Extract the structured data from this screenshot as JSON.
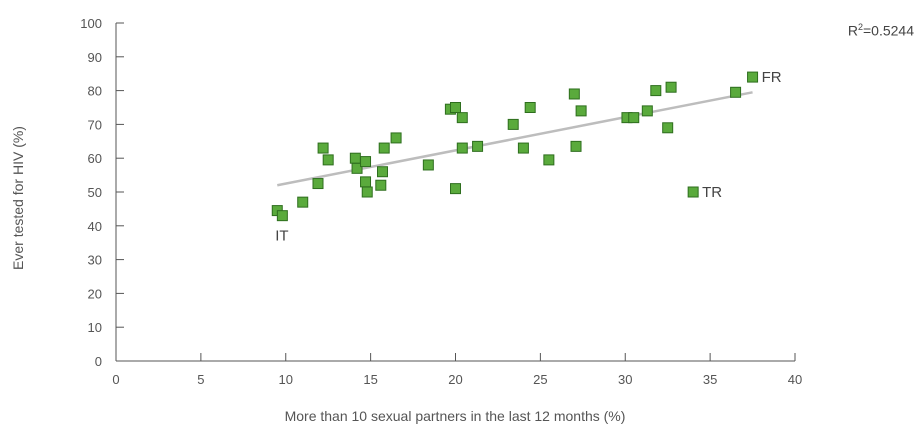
{
  "chart_data": {
    "type": "scatter",
    "xlabel": "More than 10 sexual partners in the last 12 months (%)",
    "ylabel": "Ever tested for HIV (%)",
    "xlim": [
      0,
      40
    ],
    "ylim": [
      0,
      100
    ],
    "xticks": [
      0,
      5,
      10,
      15,
      20,
      25,
      30,
      35,
      40
    ],
    "yticks": [
      0,
      10,
      20,
      30,
      40,
      50,
      60,
      70,
      80,
      90,
      100
    ],
    "grid": false,
    "legend": "none",
    "marker_color": "#5aaa3c",
    "marker_edge_color": "#2e6e1e",
    "trendline_color": "#bdbdbd",
    "r2": {
      "prefix": "R",
      "sup": "2",
      "value": "=0.5244"
    },
    "trendline": {
      "x": [
        9.5,
        37.5
      ],
      "y": [
        52,
        79.5
      ]
    },
    "points": [
      {
        "x": 9.5,
        "y": 44.5,
        "label": "IT"
      },
      {
        "x": 9.8,
        "y": 43,
        "label": ""
      },
      {
        "x": 11.0,
        "y": 47,
        "label": ""
      },
      {
        "x": 11.9,
        "y": 52.5,
        "label": ""
      },
      {
        "x": 12.2,
        "y": 63,
        "label": ""
      },
      {
        "x": 12.5,
        "y": 59.5,
        "label": ""
      },
      {
        "x": 14.1,
        "y": 60,
        "label": ""
      },
      {
        "x": 14.2,
        "y": 57,
        "label": ""
      },
      {
        "x": 14.7,
        "y": 59,
        "label": ""
      },
      {
        "x": 14.7,
        "y": 53,
        "label": ""
      },
      {
        "x": 14.8,
        "y": 50,
        "label": ""
      },
      {
        "x": 15.6,
        "y": 52,
        "label": ""
      },
      {
        "x": 15.7,
        "y": 56,
        "label": ""
      },
      {
        "x": 15.8,
        "y": 63,
        "label": ""
      },
      {
        "x": 16.5,
        "y": 66,
        "label": ""
      },
      {
        "x": 18.4,
        "y": 58,
        "label": ""
      },
      {
        "x": 19.7,
        "y": 74.5,
        "label": ""
      },
      {
        "x": 20.0,
        "y": 75,
        "label": ""
      },
      {
        "x": 20.0,
        "y": 51,
        "label": ""
      },
      {
        "x": 20.4,
        "y": 72,
        "label": ""
      },
      {
        "x": 20.4,
        "y": 63,
        "label": ""
      },
      {
        "x": 21.3,
        "y": 63.5,
        "label": ""
      },
      {
        "x": 23.4,
        "y": 70,
        "label": ""
      },
      {
        "x": 24.0,
        "y": 63,
        "label": ""
      },
      {
        "x": 24.4,
        "y": 75,
        "label": ""
      },
      {
        "x": 25.5,
        "y": 59.5,
        "label": ""
      },
      {
        "x": 27.0,
        "y": 79,
        "label": ""
      },
      {
        "x": 27.1,
        "y": 63.5,
        "label": ""
      },
      {
        "x": 27.4,
        "y": 74,
        "label": ""
      },
      {
        "x": 30.1,
        "y": 72,
        "label": ""
      },
      {
        "x": 30.5,
        "y": 72,
        "label": ""
      },
      {
        "x": 31.3,
        "y": 74,
        "label": ""
      },
      {
        "x": 31.8,
        "y": 80,
        "label": ""
      },
      {
        "x": 32.5,
        "y": 69,
        "label": ""
      },
      {
        "x": 32.7,
        "y": 81,
        "label": ""
      },
      {
        "x": 34.0,
        "y": 50,
        "label": "TR"
      },
      {
        "x": 36.5,
        "y": 79.5,
        "label": ""
      },
      {
        "x": 37.5,
        "y": 84,
        "label": "FR"
      }
    ]
  }
}
